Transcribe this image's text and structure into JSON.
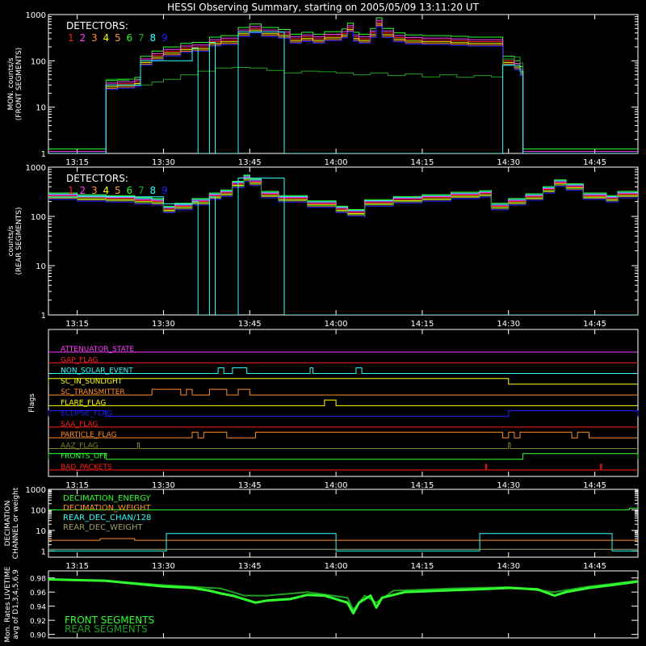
{
  "title": "HESSI Observing Summary, starting on 2005/05/09 13:11:20 UT",
  "time_ticks": [
    "13:15",
    "13:30",
    "13:45",
    "14:00",
    "14:15",
    "14:30",
    "14:45"
  ],
  "time_tick_minutes": [
    15,
    30,
    45,
    60,
    75,
    90,
    105
  ],
  "time_range_minutes": [
    10,
    112.5
  ],
  "colors": {
    "background": "#000000",
    "axes": "#ffffff",
    "det1": "#ff2020",
    "det2": "#ff40ff",
    "det3": "#ff8c28",
    "det4": "#ffff00",
    "det5": "#ff9a3a",
    "det6": "#30ff30",
    "det7": "#20a020",
    "det8": "#30ffff",
    "det9": "#2020ff"
  },
  "chart_data": [
    {
      "type": "line",
      "id": "front",
      "ylabel": "MON. counts/s",
      "ylabel2": "(FRONT SEGMENTS)",
      "yscale": "log",
      "ylim": [
        1,
        1000
      ],
      "yticks": [
        "1",
        "10",
        "100",
        "1000"
      ],
      "legend_title": "DETECTORS:",
      "legend_digits": [
        "1",
        "2",
        "3",
        "4",
        "5",
        "6",
        "7",
        "8",
        "9"
      ],
      "legend_placement": "top-left",
      "main_curve": [
        [
          10,
          1
        ],
        [
          20,
          1
        ],
        [
          20,
          30
        ],
        [
          22,
          32
        ],
        [
          24,
          32
        ],
        [
          25,
          35
        ],
        [
          26,
          100
        ],
        [
          28,
          130
        ],
        [
          30,
          160
        ],
        [
          33,
          190
        ],
        [
          35,
          200
        ],
        [
          38,
          260
        ],
        [
          40,
          280
        ],
        [
          43,
          420
        ],
        [
          45,
          500
        ],
        [
          47,
          420
        ],
        [
          50,
          380
        ],
        [
          52,
          300
        ],
        [
          54,
          330
        ],
        [
          56,
          300
        ],
        [
          58,
          340
        ],
        [
          61,
          390
        ],
        [
          62,
          520
        ],
        [
          63,
          330
        ],
        [
          64,
          300
        ],
        [
          66,
          400
        ],
        [
          67,
          680
        ],
        [
          68,
          400
        ],
        [
          70,
          320
        ],
        [
          72,
          290
        ],
        [
          75,
          280
        ],
        [
          78,
          280
        ],
        [
          80,
          270
        ],
        [
          83,
          260
        ],
        [
          86,
          260
        ],
        [
          88,
          260
        ],
        [
          89,
          100
        ],
        [
          91,
          80
        ],
        [
          92,
          60
        ],
        [
          92.5,
          1
        ],
        [
          112.5,
          1
        ]
      ],
      "main_colors": [
        "#30ff30",
        "#ff2020",
        "#ffff00",
        "#ff8c28",
        "#ff40ff",
        "#2020ff"
      ],
      "main_factors": [
        1.25,
        1.0,
        0.92,
        0.85,
        1.1,
        0.8
      ],
      "det7_curve": [
        [
          20,
          40
        ],
        [
          22,
          38
        ],
        [
          24,
          40
        ],
        [
          26,
          30
        ],
        [
          28,
          35
        ],
        [
          30,
          40
        ],
        [
          33,
          50
        ],
        [
          36,
          60
        ],
        [
          39,
          70
        ],
        [
          42,
          72
        ],
        [
          45,
          70
        ],
        [
          48,
          62
        ],
        [
          51,
          55
        ],
        [
          54,
          60
        ],
        [
          57,
          58
        ],
        [
          60,
          55
        ],
        [
          63,
          50
        ],
        [
          66,
          55
        ],
        [
          69,
          48
        ],
        [
          72,
          52
        ],
        [
          75,
          45
        ],
        [
          78,
          50
        ],
        [
          81,
          44
        ],
        [
          84,
          48
        ],
        [
          87,
          45
        ],
        [
          88,
          45
        ],
        [
          89,
          110
        ],
        [
          91,
          120
        ],
        [
          92,
          90
        ],
        [
          92.5,
          1
        ],
        [
          112.5,
          1
        ]
      ],
      "det8_curve": [
        [
          10,
          1
        ],
        [
          20,
          1
        ],
        [
          20,
          30
        ],
        [
          26,
          100
        ],
        [
          35,
          190
        ],
        [
          36,
          190
        ],
        [
          36,
          1
        ],
        [
          38,
          1
        ],
        [
          38,
          250
        ],
        [
          39,
          250
        ],
        [
          39,
          1
        ],
        [
          43,
          1
        ],
        [
          43,
          420
        ],
        [
          51,
          350
        ],
        [
          51,
          1
        ],
        [
          89,
          1
        ],
        [
          89,
          80
        ],
        [
          92,
          60
        ],
        [
          92.5,
          1
        ],
        [
          112.5,
          1
        ]
      ]
    },
    {
      "type": "line",
      "id": "rear",
      "ylabel": "counts/s",
      "ylabel2": "(REAR SEGMENTS)",
      "yscale": "log",
      "ylim": [
        1,
        1000
      ],
      "yticks": [
        "1",
        "10",
        "100",
        "1000"
      ],
      "legend_title": "DETECTORS:",
      "legend_digits": [
        "1",
        "2",
        "3",
        "4",
        "5",
        "6",
        "7",
        "8",
        "9"
      ],
      "legend_placement": "top-left",
      "main_curve": [
        [
          10,
          260
        ],
        [
          15,
          240
        ],
        [
          20,
          230
        ],
        [
          25,
          210
        ],
        [
          28,
          200
        ],
        [
          30,
          190
        ],
        [
          30,
          140
        ],
        [
          32,
          160
        ],
        [
          35,
          200
        ],
        [
          38,
          260
        ],
        [
          40,
          300
        ],
        [
          42,
          450
        ],
        [
          44,
          600
        ],
        [
          45,
          500
        ],
        [
          47,
          280
        ],
        [
          50,
          230
        ],
        [
          55,
          180
        ],
        [
          60,
          140
        ],
        [
          62,
          120
        ],
        [
          65,
          110
        ],
        [
          65,
          190
        ],
        [
          70,
          220
        ],
        [
          75,
          240
        ],
        [
          80,
          270
        ],
        [
          85,
          290
        ],
        [
          87,
          300
        ],
        [
          87,
          160
        ],
        [
          90,
          200
        ],
        [
          93,
          250
        ],
        [
          96,
          350
        ],
        [
          98,
          480
        ],
        [
          100,
          400
        ],
        [
          103,
          260
        ],
        [
          107,
          230
        ],
        [
          109,
          220
        ],
        [
          109,
          280
        ],
        [
          112.5,
          260
        ]
      ],
      "main_colors": [
        "#30ff30",
        "#30ffff",
        "#ff2020",
        "#ffff00",
        "#ff8c28",
        "#ff40ff",
        "#2020ff",
        "#20a020"
      ],
      "main_factors": [
        1.15,
        1.1,
        1.0,
        0.95,
        0.9,
        1.05,
        0.85,
        0.92
      ],
      "det8_curve": [
        [
          10,
          250
        ],
        [
          30,
          180
        ],
        [
          35,
          200
        ],
        [
          36,
          200
        ],
        [
          36,
          1
        ],
        [
          38,
          1
        ],
        [
          38,
          250
        ],
        [
          39,
          250
        ],
        [
          39,
          1
        ],
        [
          43,
          1
        ],
        [
          43,
          600
        ],
        [
          51,
          350
        ],
        [
          51,
          1
        ],
        [
          112.5,
          1
        ]
      ]
    },
    {
      "type": "table",
      "id": "flags",
      "ylabel": "Flags",
      "flags": [
        {
          "label": "ATTENUATOR_STATE",
          "color": "#ff40ff",
          "segments": []
        },
        {
          "label": "GAP_FLAG",
          "color": "#ff2020",
          "segments": []
        },
        {
          "label": "NON_SOLAR_EVENT",
          "color": "#30ffff",
          "segments": [
            [
              39.5,
              40.5
            ],
            [
              42,
              44.5
            ],
            [
              55.5,
              56
            ],
            [
              63.5,
              64.5
            ]
          ]
        },
        {
          "label": "SC_IN_SUNLIGHT",
          "color": "#ffff00",
          "segments": [
            [
              10,
              90
            ]
          ]
        },
        {
          "label": "SC_TRANSMITTER",
          "color": "#ff8c28",
          "segments": [
            [
              28,
              33
            ],
            [
              34,
              35
            ],
            [
              38,
              41
            ],
            [
              43,
              45
            ]
          ]
        },
        {
          "label": "FLARE_FLAG",
          "color": "#ffff00",
          "segments": [
            [
              58,
              60
            ]
          ]
        },
        {
          "label": "ECLIPSE_FLAG",
          "color": "#2020ff",
          "segments": [
            [
              10,
              20
            ],
            [
              90,
              112.5
            ]
          ]
        },
        {
          "label": "SAA_FLAG",
          "color": "#ff2020",
          "segments": []
        },
        {
          "label": "PARTICLE_FLAG",
          "color": "#ff8c28",
          "segments": [
            [
              35,
              36
            ],
            [
              37,
              41
            ],
            [
              46,
              89
            ],
            [
              90,
              91
            ],
            [
              92,
              101
            ],
            [
              102,
              104
            ]
          ]
        },
        {
          "label": "AAZ_FLAG",
          "color": "#808020",
          "segments": [
            [
              25.5,
              25.8
            ],
            [
              90,
              90.3
            ]
          ]
        },
        {
          "label": "FRONTS_OFF",
          "color": "#30ff30",
          "segments": [
            [
              10,
              20
            ],
            [
              92.5,
              112.5
            ]
          ]
        },
        {
          "label": "BAD_PACKETS",
          "color": "#ff2020",
          "segments": [
            [
              86,
              86.2
            ],
            [
              106,
              106.2
            ]
          ]
        }
      ]
    },
    {
      "type": "line",
      "id": "decimation",
      "ylabel": "DECIMATION",
      "ylabel2": "CHANNEL or weight",
      "yscale": "log",
      "ylim": [
        0.5,
        1000
      ],
      "yticks": [
        "1",
        "10",
        "100",
        "1000"
      ],
      "legend": [
        "DECIMATION_ENERGY",
        "DECIMATION_WEIGHT",
        "REAR_DEC_CHAN/128",
        "REAR_DEC_WEIGHT"
      ],
      "legend_colors": [
        "#30ff30",
        "#ff8c28",
        "#30ffff",
        "#a0a060"
      ],
      "series": [
        {
          "name": "DECIMATION_ENERGY",
          "color": "#30ff30",
          "points": [
            [
              10,
              100
            ],
            [
              111,
              100
            ],
            [
              111,
              120
            ],
            [
              112.5,
              120
            ]
          ]
        },
        {
          "name": "DECIMATION_WEIGHT",
          "color": "#ff8c28",
          "points": [
            [
              10,
              3.3
            ],
            [
              19,
              3.3
            ],
            [
              19,
              4
            ],
            [
              25,
              4
            ],
            [
              25,
              3.3
            ],
            [
              112.5,
              3.3
            ]
          ]
        },
        {
          "name": "REAR_DEC_CHAN/128",
          "color": "#30ffff",
          "points": [
            [
              10,
              1
            ],
            [
              30.5,
              1
            ],
            [
              30.5,
              7
            ],
            [
              60,
              7
            ],
            [
              60,
              1
            ],
            [
              85,
              1
            ],
            [
              85,
              7
            ],
            [
              108,
              7
            ],
            [
              108,
              1
            ],
            [
              112.5,
              1
            ]
          ]
        },
        {
          "name": "REAR_DEC_WEIGHT",
          "color": "#a0a060",
          "points": [
            [
              10,
              1.2
            ],
            [
              112.5,
              1.2
            ]
          ]
        }
      ]
    },
    {
      "type": "line",
      "id": "livetime",
      "ylabel": "Mon. Rates LIVETIME",
      "ylabel2": "avg of D1,3,4,5,6,9",
      "ylim": [
        0.9,
        0.98
      ],
      "yticks": [
        "0.90",
        "0.92",
        "0.94",
        "0.96",
        "0.98"
      ],
      "yvalues": [
        0.9,
        0.92,
        0.94,
        0.96,
        0.98
      ],
      "legend": [
        "FRONT SEGMENTS",
        "REAR SEGMENTS"
      ],
      "legend_colors": [
        "#30ff30",
        "#20a020"
      ],
      "series": [
        {
          "name": "FRONT SEGMENTS",
          "color": "#30ff30",
          "points": [
            [
              10,
              0.978
            ],
            [
              15,
              0.977
            ],
            [
              20,
              0.976
            ],
            [
              25,
              0.972
            ],
            [
              30,
              0.968
            ],
            [
              35,
              0.966
            ],
            [
              38,
              0.962
            ],
            [
              40,
              0.958
            ],
            [
              42,
              0.955
            ],
            [
              44,
              0.95
            ],
            [
              46,
              0.945
            ],
            [
              48,
              0.948
            ],
            [
              52,
              0.95
            ],
            [
              55,
              0.956
            ],
            [
              58,
              0.955
            ],
            [
              60,
              0.95
            ],
            [
              62,
              0.945
            ],
            [
              63,
              0.93
            ],
            [
              64,
              0.945
            ],
            [
              66,
              0.955
            ],
            [
              67,
              0.938
            ],
            [
              68,
              0.952
            ],
            [
              72,
              0.96
            ],
            [
              78,
              0.962
            ],
            [
              85,
              0.964
            ],
            [
              88,
              0.965
            ],
            [
              90,
              0.966
            ],
            [
              95,
              0.964
            ],
            [
              98,
              0.955
            ],
            [
              100,
              0.96
            ],
            [
              104,
              0.966
            ],
            [
              108,
              0.97
            ],
            [
              112.5,
              0.975
            ]
          ]
        },
        {
          "name": "REAR SEGMENTS",
          "color": "#20a020",
          "points": [
            [
              10,
              0.978
            ],
            [
              20,
              0.976
            ],
            [
              30,
              0.97
            ],
            [
              40,
              0.965
            ],
            [
              44,
              0.955
            ],
            [
              48,
              0.955
            ],
            [
              55,
              0.96
            ],
            [
              62,
              0.952
            ],
            [
              63,
              0.935
            ],
            [
              65,
              0.955
            ],
            [
              67,
              0.945
            ],
            [
              70,
              0.962
            ],
            [
              80,
              0.965
            ],
            [
              90,
              0.967
            ],
            [
              98,
              0.96
            ],
            [
              104,
              0.968
            ],
            [
              112.5,
              0.976
            ]
          ]
        }
      ]
    }
  ]
}
